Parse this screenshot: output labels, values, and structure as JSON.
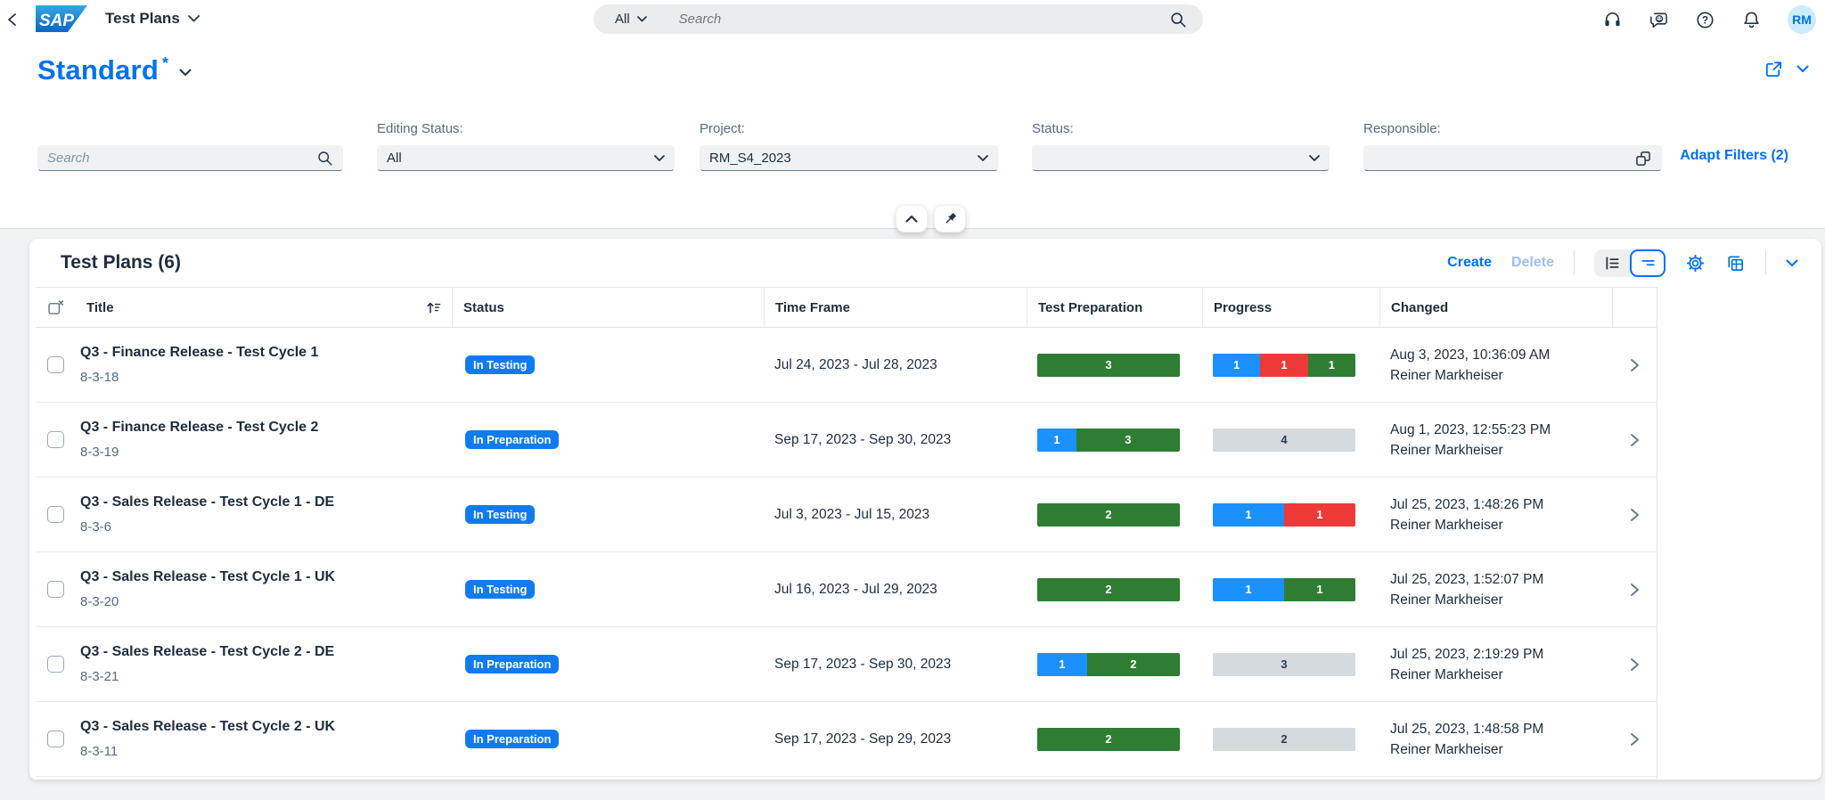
{
  "shell": {
    "logo_text": "SAP",
    "app_title": "Test Plans",
    "search": {
      "scope": "All",
      "placeholder": "Search"
    },
    "icons": [
      "headset-icon",
      "feedback-chat-icon",
      "help-icon",
      "bell-icon"
    ],
    "avatar_initials": "RM"
  },
  "variant": {
    "title": "Standard",
    "modified_marker": "*"
  },
  "filters": {
    "search_placeholder": "Search",
    "fields": [
      {
        "label": "Editing Status:",
        "value": "All",
        "control": "select"
      },
      {
        "label": "Project:",
        "value": "RM_S4_2023",
        "control": "select"
      },
      {
        "label": "Status:",
        "value": "",
        "control": "select"
      },
      {
        "label": "Responsible:",
        "value": "",
        "control": "value-help-input"
      }
    ],
    "adapt_filters_label": "Adapt Filters (2)"
  },
  "table": {
    "title": "Test Plans (6)",
    "actions": {
      "create": "Create",
      "delete": "Delete"
    },
    "columns": [
      "Title",
      "Status",
      "Time Frame",
      "Test Preparation",
      "Progress",
      "Changed"
    ],
    "rows": [
      {
        "title": "Q3 - Finance Release - Test Cycle 1",
        "id": "8-3-18",
        "status": "In Testing",
        "time_frame": "Jul 24, 2023 - Jul 28, 2023",
        "test_preparation": [
          {
            "value": 3,
            "type": "positive"
          }
        ],
        "progress": [
          {
            "value": 1,
            "type": "info"
          },
          {
            "value": 1,
            "type": "negative"
          },
          {
            "value": 1,
            "type": "positive"
          }
        ],
        "changed_at": "Aug 3, 2023, 10:36:09 AM",
        "changed_by": "Reiner Markheiser"
      },
      {
        "title": "Q3 - Finance Release - Test Cycle 2",
        "id": "8-3-19",
        "status": "In Preparation",
        "time_frame": "Sep 17, 2023 - Sep 30, 2023",
        "test_preparation": [
          {
            "value": 1,
            "type": "info"
          },
          {
            "value": 3,
            "type": "positive"
          }
        ],
        "progress": [
          {
            "value": 4,
            "type": "neutral"
          }
        ],
        "changed_at": "Aug 1, 2023, 12:55:23 PM",
        "changed_by": "Reiner Markheiser"
      },
      {
        "title": "Q3 - Sales Release - Test Cycle 1 - DE",
        "id": "8-3-6",
        "status": "In Testing",
        "time_frame": "Jul 3, 2023 - Jul 15, 2023",
        "test_preparation": [
          {
            "value": 2,
            "type": "positive"
          }
        ],
        "progress": [
          {
            "value": 1,
            "type": "info"
          },
          {
            "value": 1,
            "type": "negative"
          }
        ],
        "changed_at": "Jul 25, 2023, 1:48:26 PM",
        "changed_by": "Reiner Markheiser"
      },
      {
        "title": "Q3 - Sales Release - Test Cycle 1 - UK",
        "id": "8-3-20",
        "status": "In Testing",
        "time_frame": "Jul 16, 2023 - Jul 29, 2023",
        "test_preparation": [
          {
            "value": 2,
            "type": "positive"
          }
        ],
        "progress": [
          {
            "value": 1,
            "type": "info"
          },
          {
            "value": 1,
            "type": "positive"
          }
        ],
        "changed_at": "Jul 25, 2023, 1:52:07 PM",
        "changed_by": "Reiner Markheiser"
      },
      {
        "title": "Q3 - Sales Release - Test Cycle 2 - DE",
        "id": "8-3-21",
        "status": "In Preparation",
        "time_frame": "Sep 17, 2023 - Sep 30, 2023",
        "test_preparation": [
          {
            "value": 1,
            "type": "info"
          },
          {
            "value": 2,
            "type": "positive"
          }
        ],
        "progress": [
          {
            "value": 3,
            "type": "neutral"
          }
        ],
        "changed_at": "Jul 25, 2023, 2:19:29 PM",
        "changed_by": "Reiner Markheiser"
      },
      {
        "title": "Q3 - Sales Release - Test Cycle 2 - UK",
        "id": "8-3-11",
        "status": "In Preparation",
        "time_frame": "Sep 17, 2023 - Sep 29, 2023",
        "test_preparation": [
          {
            "value": 2,
            "type": "positive"
          }
        ],
        "progress": [
          {
            "value": 2,
            "type": "neutral"
          }
        ],
        "changed_at": "Jul 25, 2023, 1:48:58 PM",
        "changed_by": "Reiner Markheiser"
      }
    ]
  },
  "colors": {
    "accent": "#0070F2",
    "badge": "#0F7BEF",
    "info": "#1B90FF",
    "positive": "#2E7D32",
    "negative": "#EE3939",
    "neutral": "#D5DADF",
    "neutral_text": "#2B3B4D"
  }
}
